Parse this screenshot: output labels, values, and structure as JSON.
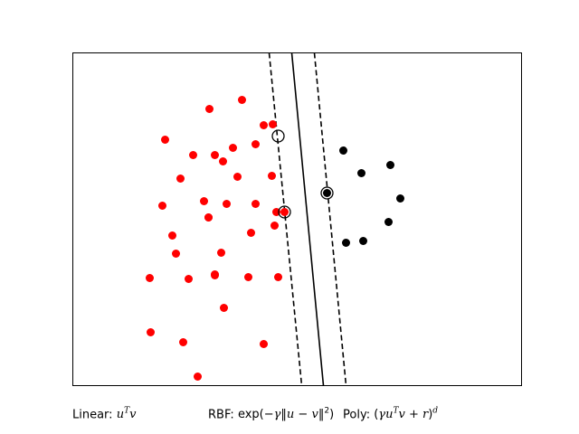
{
  "chart_data": {
    "type": "scatter",
    "title": "",
    "xlabel": "",
    "ylabel": "",
    "xlim": [
      0,
      496
    ],
    "ylim": [
      0,
      368
    ],
    "grid": false,
    "axis_ticks": false,
    "colors": {
      "class_a": "#ff0000",
      "class_b": "#000000",
      "boundary": "#000000",
      "support_vector_ring": "#000000"
    },
    "series": [
      {
        "points": [
          [
            187,
            316
          ],
          [
            151,
            306
          ],
          [
            211,
            288
          ],
          [
            157,
            255
          ],
          [
            102,
            272
          ],
          [
            177,
            263
          ],
          [
            133,
            255
          ],
          [
            221,
            289
          ],
          [
            202,
            267
          ],
          [
            166,
            248
          ],
          [
            220,
            232
          ],
          [
            119,
            229
          ],
          [
            182,
            231
          ],
          [
            99,
            199
          ],
          [
            145,
            204
          ],
          [
            170,
            201
          ],
          [
            150,
            186
          ],
          [
            202,
            201
          ],
          [
            150,
            186
          ],
          [
            110,
            166
          ],
          [
            114,
            146
          ],
          [
            164,
            147
          ],
          [
            197,
            169
          ],
          [
            223,
            177
          ],
          [
            225,
            192
          ],
          [
            85,
            119
          ],
          [
            128,
            118
          ],
          [
            157,
            123
          ],
          [
            194,
            120
          ],
          [
            227,
            120
          ],
          [
            86,
            59
          ],
          [
            122,
            48
          ],
          [
            167,
            86
          ],
          [
            211,
            46
          ],
          [
            138,
            10
          ],
          [
            157,
            122
          ],
          [
            234,
            192
          ]
        ]
      },
      {
        "points": [
          [
            299,
            260
          ],
          [
            319,
            235
          ],
          [
            351,
            244
          ],
          [
            362,
            207
          ],
          [
            349,
            181
          ],
          [
            302,
            158
          ],
          [
            321,
            160
          ],
          [
            281,
            213
          ]
        ]
      }
    ],
    "support_vectors": [
      [
        227,
        276
      ],
      [
        281,
        213
      ],
      [
        234,
        192
      ]
    ],
    "decision_boundary": {
      "line": [
        [
          242,
          368
        ],
        [
          277,
          0
        ]
      ],
      "style": "solid"
    },
    "margins": [
      {
        "line": [
          [
            217,
            368
          ],
          [
            253,
            0
          ]
        ],
        "style": "dashed"
      },
      {
        "line": [
          [
            267,
            368
          ],
          [
            302,
            0
          ]
        ],
        "style": "dashed"
      }
    ]
  },
  "captions": {
    "linear_label": "Linear:",
    "linear_formula": "u",
    "linear_sup": "T",
    "linear_tail": "v",
    "rbf_label": "RBF:",
    "rbf_formula_a": "exp(−",
    "rbf_formula_b": "γ",
    "rbf_formula_c": "‖",
    "rbf_formula_d": "u",
    "rbf_formula_e": " − ",
    "rbf_formula_f": "v",
    "rbf_formula_g": "‖",
    "rbf_formula_h": "2",
    "rbf_formula_i": ")",
    "poly_label": "Poly:",
    "poly_formula_a": "(",
    "poly_formula_b": "γu",
    "poly_formula_c": "T",
    "poly_formula_d": "v + r",
    "poly_formula_e": ")",
    "poly_formula_f": "d"
  }
}
